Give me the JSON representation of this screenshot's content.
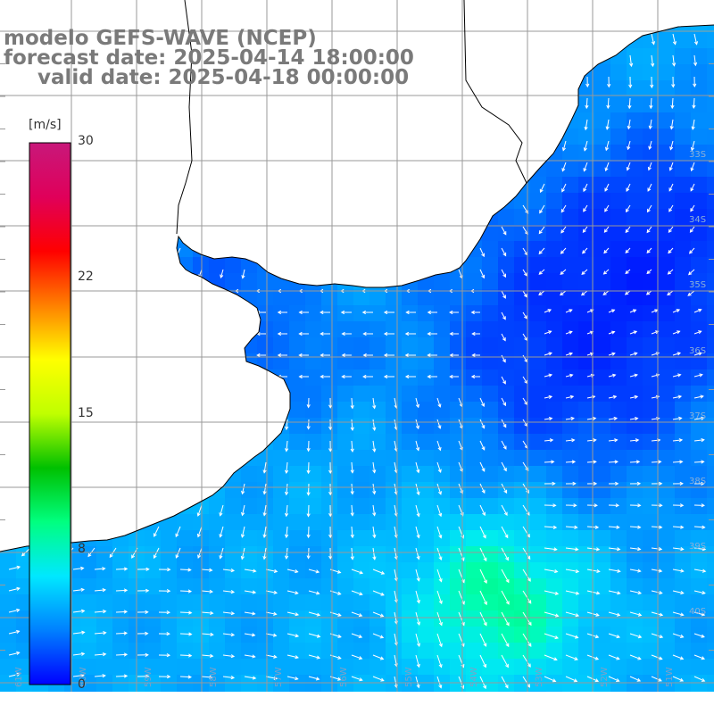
{
  "title": {
    "line1": "modelo GEFS-WAVE (NCEP)",
    "line2": "forecast date: 2025-04-14 18:00:00",
    "line3": "valid date: 2025-04-18 00:00:00"
  },
  "colorbar": {
    "unit": "[m/s]",
    "ticks": [
      "30",
      "22",
      "15",
      "8",
      "0"
    ],
    "tick_values": [
      30,
      22,
      15,
      8,
      0
    ],
    "min": 0,
    "max": 30,
    "colors": [
      "#0000ff",
      "#0080ff",
      "#00e8ff",
      "#00ff80",
      "#00c000",
      "#c0ff00",
      "#ffff00",
      "#ff8000",
      "#ff0000",
      "#e0005a",
      "#c8187a"
    ]
  },
  "map": {
    "latitude_labels": [
      "33S",
      "34S",
      "35S",
      "36S",
      "37S",
      "38S",
      "39S",
      "40S"
    ],
    "longitude_labels": [
      "61W",
      "60W",
      "59W",
      "58W",
      "57W",
      "56W",
      "55W",
      "54W",
      "53W",
      "52W",
      "51W"
    ],
    "land_color": "#ffffff",
    "grid_color": "#9a9a9a",
    "coast_color": "#000000",
    "arrow_color": "#ffffff"
  }
}
